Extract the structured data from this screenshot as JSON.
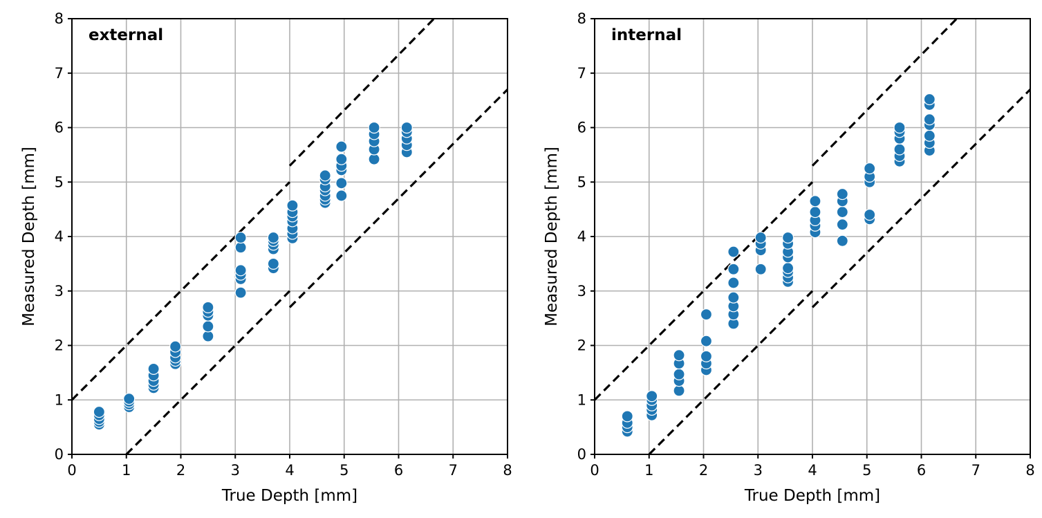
{
  "chart_data": [
    {
      "type": "scatter",
      "panel_label": "external",
      "xlabel": "True Depth [mm]",
      "ylabel": "Measured Depth [mm]",
      "xlim": [
        0,
        8
      ],
      "ylim": [
        0,
        8
      ],
      "xticks": [
        0,
        1,
        2,
        3,
        4,
        5,
        6,
        7,
        8
      ],
      "yticks": [
        0,
        1,
        2,
        3,
        4,
        5,
        6,
        7,
        8
      ],
      "grid": true,
      "marker_color": "#1f77b4",
      "bounds": [
        {
          "name": "upper-bound-1",
          "points": [
            [
              0,
              1
            ],
            [
              4,
              5
            ]
          ]
        },
        {
          "name": "upper-bound-2",
          "points": [
            [
              4,
              5.3
            ],
            [
              6.65,
              8
            ]
          ]
        },
        {
          "name": "lower-bound-1",
          "points": [
            [
              1,
              0
            ],
            [
              4,
              3
            ]
          ]
        },
        {
          "name": "lower-bound-2",
          "points": [
            [
              4,
              2.7
            ],
            [
              8,
              6.7
            ]
          ]
        }
      ],
      "series": [
        {
          "x": 0.5,
          "values": [
            0.55,
            0.6,
            0.65,
            0.72,
            0.78
          ]
        },
        {
          "x": 1.05,
          "values": [
            0.87,
            0.92,
            0.97,
            1.02
          ]
        },
        {
          "x": 1.5,
          "values": [
            1.22,
            1.28,
            1.35,
            1.45,
            1.57
          ]
        },
        {
          "x": 1.9,
          "values": [
            1.66,
            1.72,
            1.78,
            1.88,
            1.98
          ]
        },
        {
          "x": 2.5,
          "values": [
            2.17,
            2.35,
            2.55,
            2.62,
            2.7
          ]
        },
        {
          "x": 3.1,
          "values": [
            2.97,
            3.22,
            3.3,
            3.38,
            3.8,
            3.98
          ]
        },
        {
          "x": 3.7,
          "values": [
            3.42,
            3.5,
            3.77,
            3.85,
            3.92,
            3.98
          ]
        },
        {
          "x": 4.05,
          "values": [
            3.97,
            4.05,
            4.15,
            4.28,
            4.37,
            4.45,
            4.57
          ]
        },
        {
          "x": 4.65,
          "values": [
            4.62,
            4.68,
            4.75,
            4.85,
            4.92,
            5.05,
            5.12
          ]
        },
        {
          "x": 4.95,
          "values": [
            4.75,
            4.98,
            5.22,
            5.3,
            5.42,
            5.65
          ]
        },
        {
          "x": 5.55,
          "values": [
            5.42,
            5.6,
            5.75,
            5.88,
            6.0
          ]
        },
        {
          "x": 6.15,
          "values": [
            5.55,
            5.68,
            5.8,
            5.92,
            6.0
          ]
        }
      ]
    },
    {
      "type": "scatter",
      "panel_label": "internal",
      "xlabel": "True Depth [mm]",
      "ylabel": "Measured Depth [mm]",
      "xlim": [
        0,
        8
      ],
      "ylim": [
        0,
        8
      ],
      "xticks": [
        0,
        1,
        2,
        3,
        4,
        5,
        6,
        7,
        8
      ],
      "yticks": [
        0,
        1,
        2,
        3,
        4,
        5,
        6,
        7,
        8
      ],
      "grid": true,
      "marker_color": "#1f77b4",
      "bounds": [
        {
          "name": "upper-bound-1",
          "points": [
            [
              0,
              1
            ],
            [
              4,
              5
            ]
          ]
        },
        {
          "name": "upper-bound-2",
          "points": [
            [
              4,
              5.3
            ],
            [
              6.65,
              8
            ]
          ]
        },
        {
          "name": "lower-bound-1",
          "points": [
            [
              1,
              0
            ],
            [
              4,
              3
            ]
          ]
        },
        {
          "name": "lower-bound-2",
          "points": [
            [
              4,
              2.7
            ],
            [
              8,
              6.7
            ]
          ]
        }
      ],
      "series": [
        {
          "x": 0.6,
          "values": [
            0.42,
            0.5,
            0.58,
            0.7
          ]
        },
        {
          "x": 1.05,
          "values": [
            0.72,
            0.82,
            0.9,
            1.0,
            1.07
          ]
        },
        {
          "x": 1.55,
          "values": [
            1.17,
            1.35,
            1.47,
            1.67,
            1.82
          ]
        },
        {
          "x": 2.05,
          "values": [
            1.55,
            1.67,
            1.8,
            2.08,
            2.57
          ]
        },
        {
          "x": 2.55,
          "values": [
            2.4,
            2.57,
            2.72,
            2.88,
            3.15,
            3.4,
            3.72
          ]
        },
        {
          "x": 3.05,
          "values": [
            3.4,
            3.75,
            3.87,
            3.98
          ]
        },
        {
          "x": 3.55,
          "values": [
            3.17,
            3.25,
            3.35,
            3.42,
            3.62,
            3.72,
            3.87,
            3.98
          ]
        },
        {
          "x": 4.05,
          "values": [
            4.08,
            4.2,
            4.3,
            4.45,
            4.65
          ]
        },
        {
          "x": 4.55,
          "values": [
            3.92,
            4.22,
            4.45,
            4.65,
            4.78
          ]
        },
        {
          "x": 5.05,
          "values": [
            4.32,
            4.4,
            5.0,
            5.1,
            5.25
          ]
        },
        {
          "x": 5.6,
          "values": [
            5.38,
            5.48,
            5.6,
            5.8,
            5.92,
            6.0
          ]
        },
        {
          "x": 6.15,
          "values": [
            5.58,
            5.72,
            5.85,
            6.05,
            6.15,
            6.42,
            6.52
          ]
        }
      ]
    }
  ]
}
